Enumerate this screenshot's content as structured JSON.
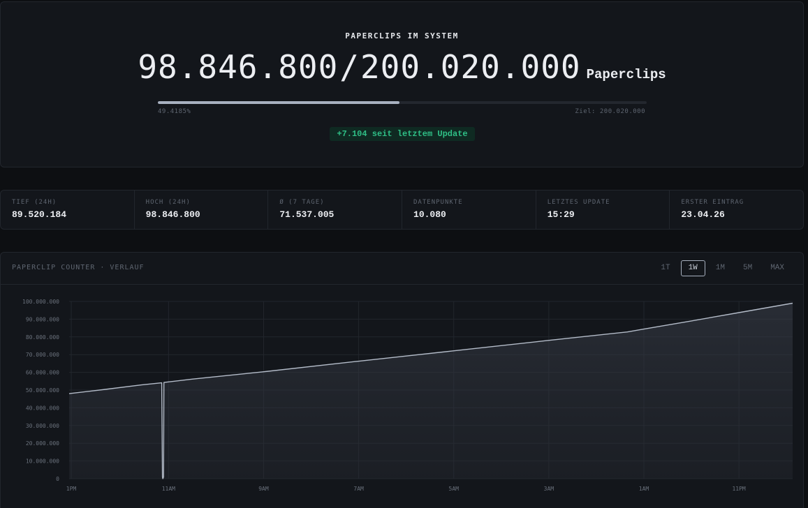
{
  "hero": {
    "label": "PAPERCLIPS IM SYSTEM",
    "current": "98.846.800",
    "separator": "/",
    "target": "200.020.000",
    "unit": "Paperclips",
    "progress_fraction": 0.494185,
    "progress_percent_label": "49.4185%",
    "goal_label": "Ziel: 200.020.000",
    "delta_badge": "+7.104 seit letztem Update"
  },
  "stats": [
    {
      "label": "TIEF (24H)",
      "value": "89.520.184"
    },
    {
      "label": "HOCH (24H)",
      "value": "98.846.800"
    },
    {
      "label": "Ø (7 TAGE)",
      "value": "71.537.005"
    },
    {
      "label": "DATENPUNKTE",
      "value": "10.080"
    },
    {
      "label": "LETZTES UPDATE",
      "value": "15:29"
    },
    {
      "label": "ERSTER EINTRAG",
      "value": "23.04.26"
    }
  ],
  "chart_panel": {
    "title": "PAPERCLIP COUNTER · VERLAUF",
    "range_tabs": [
      "1T",
      "1W",
      "1M",
      "5M",
      "MAX"
    ],
    "active_tab": "1W"
  },
  "colors": {
    "line": "#b4bcc9",
    "accent_green": "#2fbf86",
    "background": "#0d0f12"
  },
  "chart_data": {
    "type": "area",
    "title": "",
    "xlabel": "",
    "ylabel": "",
    "ylim": [
      0,
      100000000
    ],
    "y_ticks": [
      "0",
      "10.000.000",
      "20.000.000",
      "30.000.000",
      "40.000.000",
      "50.000.000",
      "60.000.000",
      "70.000.000",
      "80.000.000",
      "90.000.000",
      "100.000.000"
    ],
    "x_ticks": [
      "1PM",
      "11AM",
      "9AM",
      "7AM",
      "5AM",
      "3AM",
      "1AM",
      "11PM"
    ],
    "x_tick_positions": [
      0,
      0.1345,
      0.2659,
      0.3973,
      0.5287,
      0.6601,
      0.7915,
      0.9229
    ],
    "grid": true,
    "series": [
      {
        "x": [
          0,
          0.05,
          0.1,
          0.128,
          0.129,
          0.1295,
          0.1305,
          0.131,
          0.17,
          0.2659,
          0.3973,
          0.5287,
          0.6601,
          0.7715,
          0.7915,
          0.86,
          0.9229,
          1.0
        ],
        "values": [
          48000000,
          50400000,
          52900000,
          54100000,
          1000000,
          0,
          1000000,
          54300000,
          56200000,
          60200000,
          66200000,
          72000000,
          77900000,
          82800000,
          84200000,
          89000000,
          93500000,
          99000000
        ]
      }
    ]
  }
}
